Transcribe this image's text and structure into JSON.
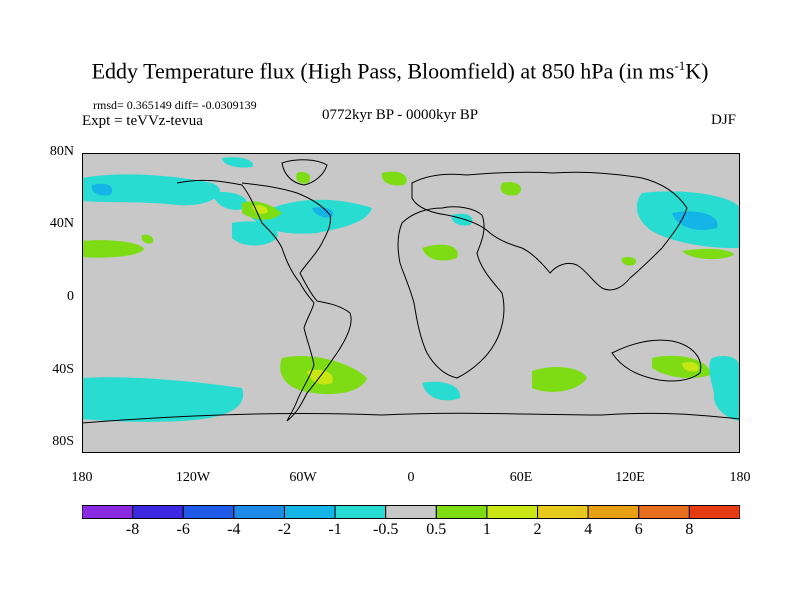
{
  "title": "Eddy Temperature flux (High Pass, Bloomfield) at 850 hPa (in ms",
  "title_sup": "-1",
  "title_end": "K)",
  "stats": "rmsd= 0.365149 diff= -0.0309139",
  "experiment": "Expt = teVVz-tevua",
  "period": "0772kyr BP - 0000kyr BP",
  "season": "DJF",
  "y_ticks": [
    "80N",
    "40N",
    "0",
    "40S",
    "80S"
  ],
  "x_ticks": [
    "180",
    "120W",
    "60W",
    "0",
    "60E",
    "120E",
    "180"
  ],
  "colorbar": {
    "labels": [
      "-8",
      "-6",
      "-4",
      "-2",
      "-1",
      "-0.5",
      "0.5",
      "1",
      "2",
      "4",
      "6",
      "8"
    ],
    "colors": [
      "#8a2be2",
      "#3c28e0",
      "#1e5ae6",
      "#1e8ce6",
      "#14b4e6",
      "#28dcd2",
      "#c8c8c8",
      "#7ddc14",
      "#c8e614",
      "#e6c81e",
      "#e6a014",
      "#e66e1e",
      "#e63c14"
    ]
  },
  "colors": {
    "land_background": "#c8c8c8",
    "positive_weak": "#7ddc14",
    "positive_mid": "#c8e614",
    "negative_weak": "#28dcd2",
    "negative_mid": "#14b4e6"
  }
}
